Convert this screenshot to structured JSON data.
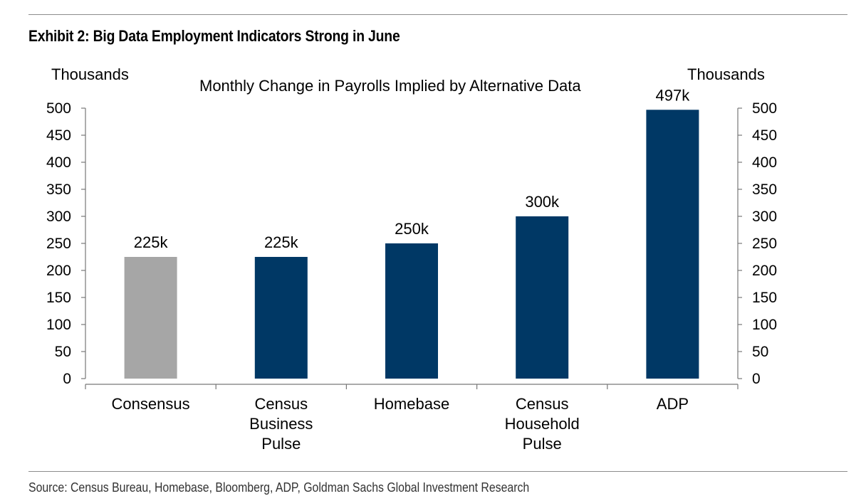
{
  "header": {
    "exhibit_title": "Exhibit 2: Big Data Employment Indicators Strong in June"
  },
  "footer": {
    "source": "Source: Census Bureau, Homebase, Bloomberg, ADP, Goldman Sachs Global Investment Research"
  },
  "chart_data": {
    "type": "bar",
    "title": "Monthly Change in Payrolls Implied by Alternative Data",
    "left_axis_unit": "Thousands",
    "right_axis_unit": "Thousands",
    "categories": [
      [
        "Consensus"
      ],
      [
        "Census",
        "Business",
        "Pulse"
      ],
      [
        "Homebase"
      ],
      [
        "Census",
        "Household",
        "Pulse"
      ],
      [
        "ADP"
      ]
    ],
    "values": [
      225,
      225,
      250,
      300,
      497
    ],
    "data_labels": [
      "225k",
      "225k",
      "250k",
      "300k",
      "497k"
    ],
    "colors": [
      "#a6a6a6",
      "#003865",
      "#003865",
      "#003865",
      "#003865"
    ],
    "ylim": [
      0,
      500
    ],
    "yticks": [
      0,
      50,
      100,
      150,
      200,
      250,
      300,
      350,
      400,
      450,
      500
    ],
    "grid": false,
    "legend": "none"
  }
}
